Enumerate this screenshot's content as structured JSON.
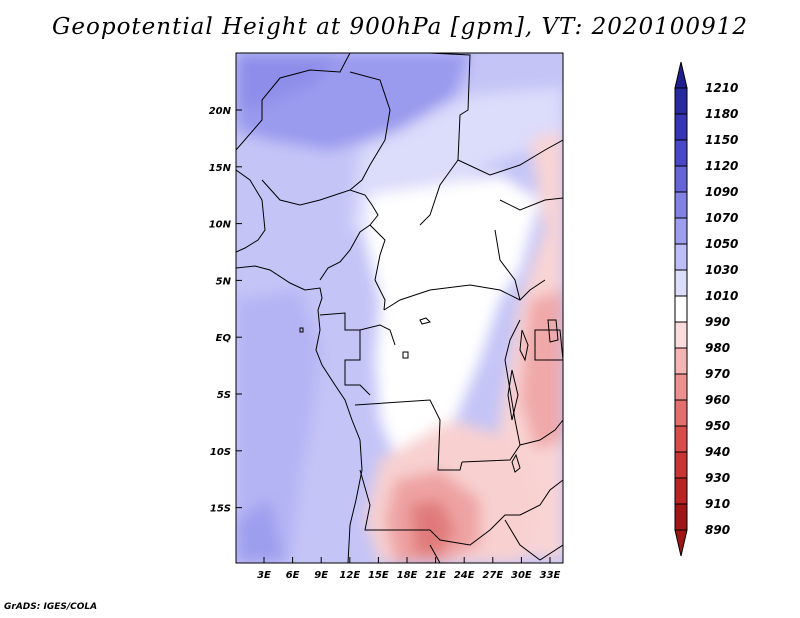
{
  "title": "Geopotential Height at 900hPa [gpm], VT: 2020100912",
  "footer": "GrADS: IGES/COLA",
  "map": {
    "lat_labels": [
      "20N",
      "15N",
      "10N",
      "5N",
      "EQ",
      "5S",
      "10S",
      "15S"
    ],
    "lon_labels": [
      "3E",
      "6E",
      "9E",
      "12E",
      "15E",
      "18E",
      "21E",
      "24E",
      "27E",
      "30E",
      "33E"
    ]
  },
  "colorbar": {
    "levels": [
      "1210",
      "1180",
      "1150",
      "1120",
      "1090",
      "1070",
      "1050",
      "1030",
      "1010",
      "990",
      "980",
      "970",
      "960",
      "950",
      "940",
      "930",
      "910",
      "890"
    ],
    "colors": [
      "#1f1f8f",
      "#2a2aa0",
      "#3535b5",
      "#4848c8",
      "#6565d8",
      "#8282e4",
      "#9e9eef",
      "#bdbdf7",
      "#dcdcfb",
      "#ffffff",
      "#fbdcdc",
      "#f5b5b5",
      "#ec9090",
      "#e26e6e",
      "#d84c4c",
      "#c93535",
      "#b82424",
      "#a01616"
    ]
  }
}
